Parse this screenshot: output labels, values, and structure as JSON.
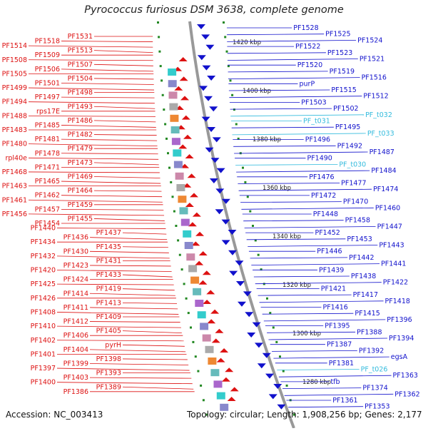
{
  "title": "Pyrococcus furiosus DSM 3638, complete genome",
  "footer": {
    "accession": "Accession: NC_003413",
    "info": "Topology: circular; Length: 1,908,256 bp; Genes: 2,177"
  },
  "colors": {
    "plus_strand": "#dd1111",
    "minus_strand": "#1111cc",
    "rna": "#33bbdd",
    "backbone": "#999999",
    "scale_ticks": "#228822"
  },
  "scale_marks": [
    "1420 kbp",
    "1400 kbp",
    "1380 kbp",
    "1360 kbp",
    "1340 kbp",
    "1320 kbp",
    "1300 kbp",
    "1280 kbp"
  ],
  "left_labels": [
    "PF1531",
    "PF1518",
    "PF1514",
    "PF1513",
    "PF1509",
    "PF1508",
    "PF1507",
    "PF1506",
    "PF1505",
    "PF1504",
    "PF1501",
    "PF1499",
    "PF1498",
    "PF1497",
    "PF1494",
    "PF1493",
    "rps17E",
    "PF1488",
    "PF1486",
    "PF1485",
    "PF1483",
    "PF1482",
    "PF1481",
    "PF1480",
    "PF1479",
    "PF1478",
    "rpl40e",
    "PF1473",
    "PF1471",
    "PF1468",
    "PF1469",
    "PF1465",
    "PF1463",
    "PF1464",
    "PF1462",
    "PF1461",
    "PF1459",
    "PF1457",
    "PF1456",
    "PF1455",
    "PF1454",
    "PF1440",
    "PF1437",
    "PF1436",
    "PF1434",
    "PF1435",
    "PF1430",
    "PF1432",
    "PF1431",
    "PF1423",
    "PF1420",
    "PF1433",
    "PF1424",
    "PF1425",
    "PF1419",
    "PF1414",
    "PF1426",
    "PF1413",
    "PF1411",
    "PF1408",
    "PF1409",
    "PF1412",
    "PF1410",
    "PF1405",
    "PF1406",
    "PF1402",
    "pyrH",
    "PF1404",
    "PF1401",
    "PF1398",
    "PF1399",
    "PF1397",
    "PF1393",
    "PF1403",
    "PF1400",
    "PF1389",
    "PF1386"
  ],
  "right_labels": [
    "PF1528",
    "PF1525",
    "PF1524",
    "PF1522",
    "PF1523",
    "PF1521",
    "PF1520",
    "PF1519",
    "PF1516",
    "purP",
    "PF1515",
    "PF1512",
    "PF1503",
    "PF1502",
    "PF_t032",
    "PF_t031",
    "PF1495",
    "PF_t033",
    "PF1496",
    "PF1492",
    "PF1487",
    "PF1490",
    "PF_t030",
    "PF1484",
    "PF1476",
    "PF1477",
    "PF1474",
    "PF1472",
    "PF1470",
    "PF1460",
    "PF1448",
    "PF1458",
    "PF1447",
    "PF1452",
    "PF1453",
    "PF1443",
    "PF1446",
    "PF1442",
    "PF1441",
    "PF1439",
    "PF1438",
    "PF1422",
    "PF1421",
    "PF1417",
    "PF1418",
    "PF1416",
    "PF1415",
    "PF1396",
    "PF1395",
    "PF1388",
    "PF1394",
    "PF1387",
    "PF1392",
    "egsA",
    "PF1381",
    "PF_t026",
    "PF1363",
    "tfb",
    "PF1374",
    "PF1362",
    "PF1361",
    "PF1353"
  ]
}
